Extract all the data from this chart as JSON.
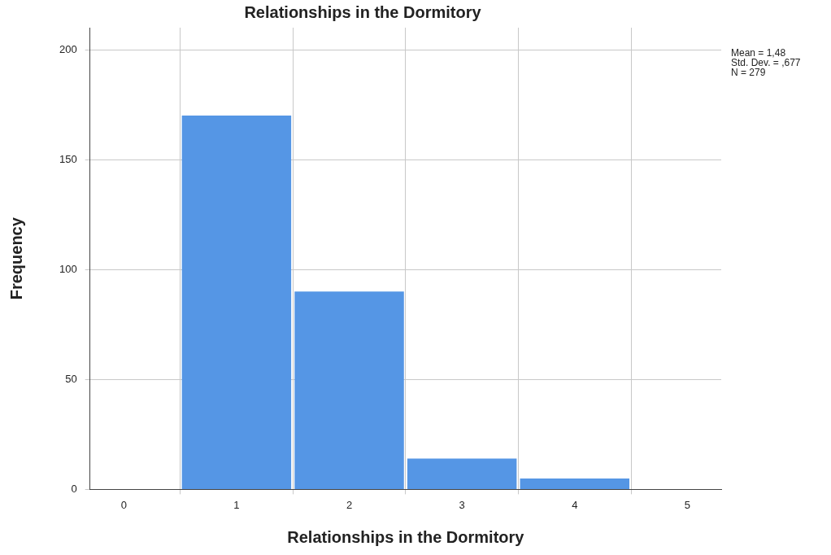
{
  "chart_data": {
    "type": "histogram",
    "title": "Relationships in the Dormitory",
    "xlabel": "Relationships in the Dormitory",
    "ylabel": "Frequency",
    "bins": [
      0.5,
      1.5,
      2.5,
      3.5,
      4.5
    ],
    "values": [
      170,
      90,
      14,
      5
    ],
    "color": "#5596e5",
    "xlim": [
      -0.3,
      5.3
    ],
    "xticks": [
      0,
      1,
      2,
      3,
      4,
      5
    ],
    "ylim": [
      0,
      210
    ],
    "yticks": [
      0,
      50,
      100,
      150,
      200
    ],
    "grid": true,
    "legend": false,
    "annotations": [
      "Mean = 1,48",
      "Std. Dev. = ,677",
      "N = 279"
    ]
  }
}
